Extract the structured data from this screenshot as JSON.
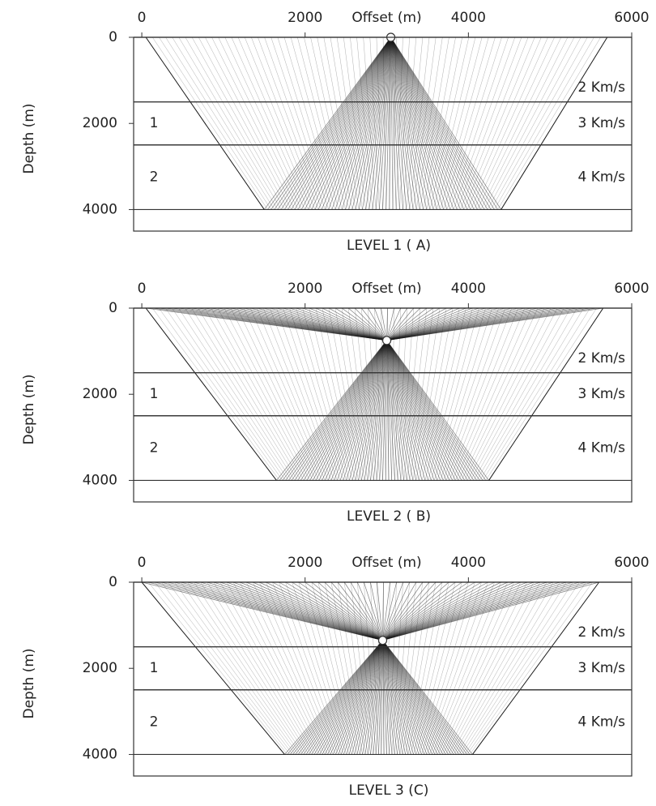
{
  "chart_data": [
    {
      "type": "raypath",
      "title": "LEVEL 1 ( A)",
      "xlabel": "Offset (m)",
      "ylabel": "Depth (m)",
      "xlim": [
        -100,
        6000
      ],
      "ylim": [
        4500,
        0
      ],
      "xticks": [
        0,
        2000,
        4000,
        6000
      ],
      "yticks": [
        0,
        2000,
        4000
      ],
      "layers": [
        {
          "top": 0,
          "bottom": 1500,
          "velocity": "2 Km/s"
        },
        {
          "top": 1500,
          "bottom": 2500,
          "name": "1",
          "velocity": "3 Km/s"
        },
        {
          "top": 2500,
          "bottom": 4000,
          "name": "2",
          "velocity": "4 Km/s"
        }
      ],
      "source": {
        "x": 3050,
        "depth": 0
      },
      "surface_span": [
        50,
        5700
      ],
      "bottom_span": [
        1500,
        4400
      ],
      "color": "#1a1a1a"
    },
    {
      "type": "raypath",
      "title": "LEVEL 2 ( B)",
      "xlabel": "Offset (m)",
      "ylabel": "Depth (m)",
      "xlim": [
        -100,
        6000
      ],
      "ylim": [
        4500,
        0
      ],
      "xticks": [
        0,
        2000,
        4000,
        6000
      ],
      "yticks": [
        0,
        2000,
        4000
      ],
      "layers": [
        {
          "top": 0,
          "bottom": 1500,
          "velocity": "2 Km/s"
        },
        {
          "top": 1500,
          "bottom": 2500,
          "name": "1",
          "velocity": "3 Km/s"
        },
        {
          "top": 2500,
          "bottom": 4000,
          "name": "2",
          "velocity": "4 Km/s"
        }
      ],
      "source": {
        "x": 3000,
        "depth": 750
      },
      "surface_span": [
        50,
        5650
      ],
      "bottom_span": [
        1650,
        4250
      ],
      "color": "#1a1a1a"
    },
    {
      "type": "raypath",
      "title": "LEVEL 3 (C)",
      "xlabel": "Offset (m)",
      "ylabel": "Depth (m)",
      "xlim": [
        -100,
        6000
      ],
      "ylim": [
        4500,
        0
      ],
      "xticks": [
        0,
        2000,
        4000,
        6000
      ],
      "yticks": [
        0,
        2000,
        4000
      ],
      "layers": [
        {
          "top": 0,
          "bottom": 1500,
          "velocity": "2 Km/s"
        },
        {
          "top": 1500,
          "bottom": 2500,
          "name": "1",
          "velocity": "3 Km/s"
        },
        {
          "top": 2500,
          "bottom": 4000,
          "name": "2",
          "velocity": "4 Km/s"
        }
      ],
      "source": {
        "x": 2950,
        "depth": 1350
      },
      "surface_span": [
        0,
        5600
      ],
      "bottom_span": [
        1750,
        4050
      ],
      "color": "#1a1a1a"
    }
  ]
}
